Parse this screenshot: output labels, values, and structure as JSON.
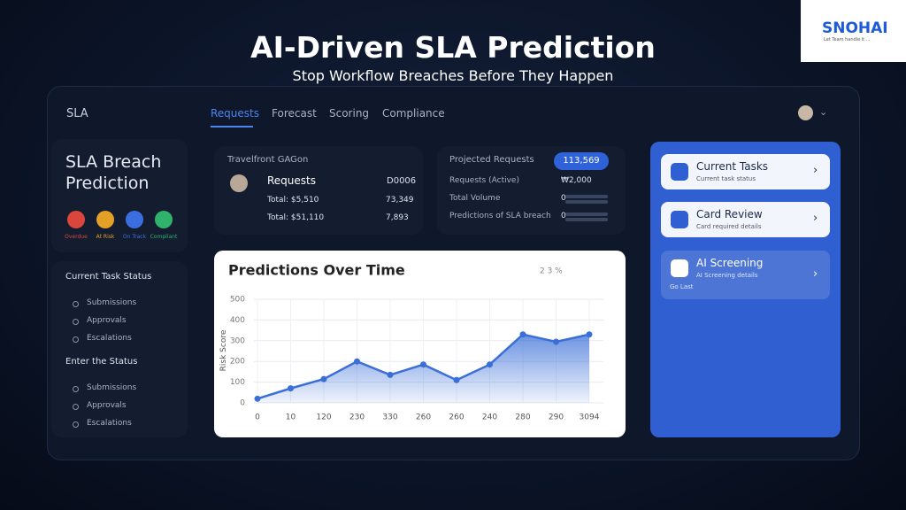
{
  "header": {
    "title": "AI-Driven SLA Prediction",
    "subtitle": "Stop Workflow Breaches Before They Happen"
  },
  "logo": {
    "name": "SNOHAI",
    "tagline": "Let Team handle it ..."
  },
  "nav": {
    "brand": "SLA",
    "tabs": [
      "Requests",
      "Forecast",
      "Scoring",
      "Compliance"
    ]
  },
  "left_panel": {
    "title": "SLA Breach Prediction",
    "statuses": [
      {
        "label": "Overdue",
        "color": "#d9463b"
      },
      {
        "label": "At Risk",
        "color": "#e2a126"
      },
      {
        "label": "On Track",
        "color": "#3b6fe0"
      },
      {
        "label": "Compliant",
        "color": "#2fb36a"
      }
    ],
    "sections": [
      {
        "title": "Current Task Status",
        "items": [
          "Submissions",
          "Approvals",
          "Escalations"
        ]
      },
      {
        "title": "Enter the Status",
        "items": [
          "Submissions",
          "Approvals",
          "Escalations"
        ]
      }
    ]
  },
  "requests_card": {
    "header": "Travelfront GAGon",
    "title": "Requests",
    "code": "D0006",
    "rows": [
      [
        "Total: $5,510",
        "73,349"
      ],
      [
        "Total: $51,110",
        "7,893"
      ]
    ]
  },
  "projected_card": {
    "title": "Projected Requests",
    "badge": "113,569",
    "rows": [
      [
        "Requests (Active)",
        "₩2,000"
      ],
      [
        "Total Volume",
        "0"
      ],
      [
        "Predictions of SLA breach",
        "0"
      ]
    ]
  },
  "chart_data": {
    "type": "line",
    "title": "Predictions Over Time",
    "toolbar": "2 3 %",
    "y_label": "Risk Score",
    "categories": [
      "0",
      "10",
      "120",
      "230",
      "330",
      "260",
      "260",
      "240",
      "280",
      "290",
      "3094"
    ],
    "values": [
      20,
      70,
      115,
      200,
      135,
      185,
      110,
      185,
      330,
      295,
      330
    ],
    "color": "#3b6fd8",
    "ylim": [
      0,
      500
    ],
    "yticks": [
      0,
      100,
      200,
      300,
      400,
      500
    ],
    "grid": true
  },
  "right_panel": {
    "cards": [
      {
        "title": "Current Tasks",
        "subtitle": "Current task status"
      },
      {
        "title": "Card Review",
        "subtitle": "Card required details"
      },
      {
        "title": "AI Screening",
        "subtitle": "AI Screening details",
        "note": "Go Last"
      }
    ]
  }
}
